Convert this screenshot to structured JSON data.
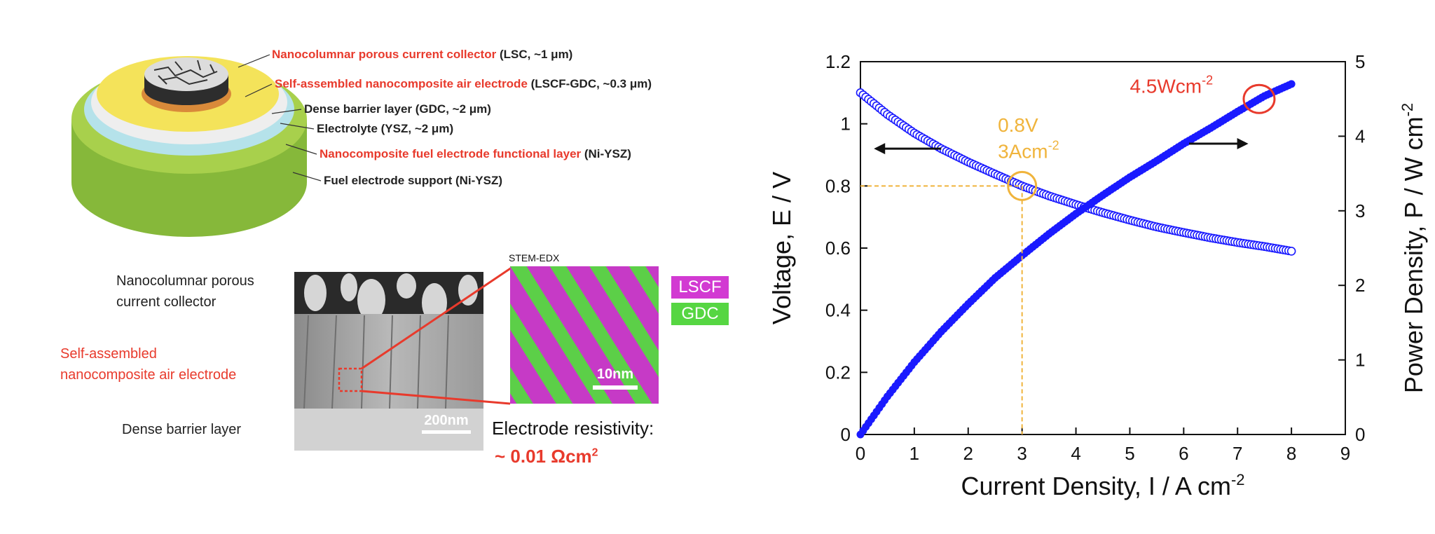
{
  "schematic": {
    "layers": [
      {
        "highlight": "Nanocolumnar porous current collector",
        "rest": " (LSC, ~1 μm)"
      },
      {
        "highlight": "Self-assembled nanocomposite air electrode",
        "rest": " (LSCF-GDC, ~0.3 μm)"
      },
      {
        "highlight": "",
        "rest": "Dense barrier layer (GDC, ~2 μm)"
      },
      {
        "highlight": "",
        "rest": "Electrolyte (YSZ, ~2 μm)"
      },
      {
        "highlight": "Nanocomposite fuel electrode functional layer",
        "rest": " (Ni-YSZ)"
      },
      {
        "highlight": "",
        "rest": "Fuel electrode support (Ni-YSZ)"
      }
    ]
  },
  "micrograph": {
    "label_collector_1": "Nanocolumnar porous",
    "label_collector_2": "current collector",
    "label_air_1": "Self-assembled",
    "label_air_2": "nanocomposite air electrode",
    "label_barrier": "Dense barrier layer",
    "scale_sem": "200nm",
    "stem_title": "STEM-EDX",
    "scale_stem": "10nm",
    "legend_lscf": "LSCF",
    "legend_gdc": "GDC",
    "legend_lscf_color": "#d23ad2",
    "legend_gdc_color": "#56d642",
    "resistivity_label": "Electrode resistivity:",
    "resistivity_value": "~ 0.01 Ωcm"
  },
  "chart_data": {
    "type": "line",
    "xlabel": "Current Density, I / A cm",
    "ylabel_left": "Voltage, E / V",
    "ylabel_right": "Power Density, P / W cm",
    "xlim": [
      0,
      9
    ],
    "ylim_left": [
      0,
      1.2
    ],
    "ylim_right": [
      0,
      5
    ],
    "x_ticks": [
      "0",
      "1",
      "2",
      "3",
      "4",
      "5",
      "6",
      "7",
      "8",
      "9"
    ],
    "y_left_ticks": [
      "0",
      "0.2",
      "0.4",
      "0.6",
      "0.8",
      "1",
      "1.2"
    ],
    "y_right_ticks": [
      "0",
      "1",
      "2",
      "3",
      "4",
      "5"
    ],
    "series": [
      {
        "name": "",
        "axis": "left",
        "marker": "open-circle",
        "color": "#1a1aff",
        "x": [
          0,
          0.5,
          1,
          1.5,
          2,
          2.5,
          3,
          3.5,
          4,
          4.5,
          5,
          5.5,
          6,
          6.5,
          7,
          7.5,
          8
        ],
        "y": [
          1.1,
          1.03,
          0.97,
          0.92,
          0.877,
          0.838,
          0.8,
          0.768,
          0.74,
          0.714,
          0.69,
          0.668,
          0.65,
          0.633,
          0.618,
          0.605,
          0.59
        ]
      },
      {
        "name": "",
        "axis": "right",
        "marker": "filled-circle",
        "color": "#1a1aff",
        "x": [
          0,
          0.5,
          1,
          1.5,
          2,
          2.5,
          3,
          3.5,
          4,
          4.5,
          5,
          5.5,
          6,
          6.5,
          7,
          7.5,
          8
        ],
        "y": [
          0,
          0.51,
          0.97,
          1.38,
          1.75,
          2.1,
          2.4,
          2.69,
          2.96,
          3.21,
          3.45,
          3.67,
          3.9,
          4.11,
          4.33,
          4.54,
          4.7
        ]
      }
    ],
    "annotations": {
      "left_point_1": "0.8V",
      "left_point_2": "3Acm",
      "left_color": "#f0b43c",
      "right_point": "4.5Wcm",
      "right_color": "#e83a2c"
    }
  }
}
